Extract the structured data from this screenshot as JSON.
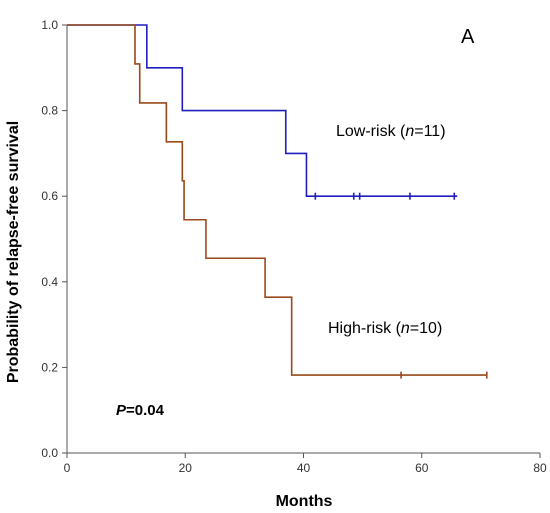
{
  "chart_data": {
    "type": "line",
    "subtype": "kaplan-meier",
    "panel_label": "A",
    "xlabel": "Months",
    "ylabel": "Probability of relapse-free survival",
    "xlim": [
      0,
      80
    ],
    "ylim": [
      0,
      1.0
    ],
    "x_ticks": [
      "0",
      "20",
      "40",
      "60",
      "80"
    ],
    "y_ticks": [
      "0.0",
      "0.2",
      "0.4",
      "0.6",
      "0.8",
      "1.0"
    ],
    "grid": false,
    "series": [
      {
        "name": "Low-risk",
        "n_label": "n",
        "n_value": "=11)",
        "label_prefix": "Low-risk (",
        "color": "#1f1fbf",
        "steps": [
          [
            0,
            1.0
          ],
          [
            13.5,
            0.9
          ],
          [
            19.5,
            0.8
          ],
          [
            37,
            0.7
          ],
          [
            40.5,
            0.6
          ],
          [
            66,
            0.6
          ]
        ],
        "censored": [
          42,
          48.5,
          49.5,
          58,
          65.5
        ]
      },
      {
        "name": "High-risk",
        "n_label": "n",
        "n_value": "=10)",
        "label_prefix": "High-risk (",
        "color": "#9a4a1a",
        "steps": [
          [
            0,
            1.0
          ],
          [
            11.5,
            0.909
          ],
          [
            12.3,
            0.818
          ],
          [
            16.8,
            0.727
          ],
          [
            19.5,
            0.636
          ],
          [
            19.8,
            0.545
          ],
          [
            23.5,
            0.455
          ],
          [
            33.5,
            0.364
          ],
          [
            38,
            0.182
          ],
          [
            71,
            0.182
          ]
        ],
        "censored": [
          56.5,
          71
        ]
      }
    ],
    "p_label": "P",
    "p_value": "=0.04"
  }
}
